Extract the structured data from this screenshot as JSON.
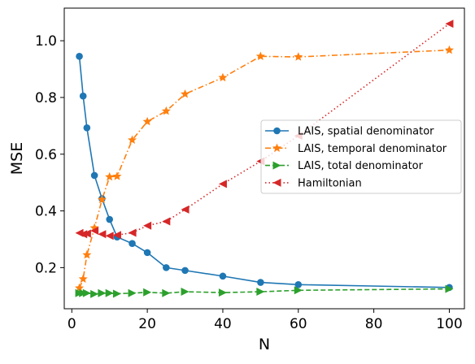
{
  "chart_data": {
    "type": "line",
    "xlabel": "N",
    "ylabel": "MSE",
    "xlim": [
      -2,
      104
    ],
    "ylim": [
      0.055,
      1.115
    ],
    "x_ticks": [
      0,
      20,
      40,
      60,
      80,
      100
    ],
    "y_ticks": [
      0.2,
      0.4,
      0.6,
      0.8,
      1.0
    ],
    "x_tick_labels": [
      "0",
      "20",
      "40",
      "60",
      "80",
      "100"
    ],
    "y_tick_labels": [
      "0.2",
      "0.4",
      "0.6",
      "0.8",
      "1.0"
    ],
    "grid": false,
    "legend_position": "center-right",
    "series": [
      {
        "name": "LAIS, spatial denominator",
        "color": "#1f77b4",
        "line_style": "solid",
        "marker": "circle",
        "x": [
          2,
          3,
          4,
          6,
          8,
          10,
          12,
          16,
          20,
          25,
          30,
          40,
          50,
          60,
          100
        ],
        "y": [
          0.945,
          0.805,
          0.693,
          0.525,
          0.443,
          0.37,
          0.308,
          0.285,
          0.253,
          0.2,
          0.19,
          0.17,
          0.148,
          0.14,
          0.13
        ]
      },
      {
        "name": "LAIS, temporal denominator",
        "color": "#ff7f0e",
        "line_style": "dashdot",
        "marker": "star",
        "x": [
          2,
          3,
          4,
          6,
          8,
          10,
          12,
          16,
          20,
          25,
          30,
          40,
          50,
          60,
          100
        ],
        "y": [
          0.128,
          0.16,
          0.245,
          0.34,
          0.44,
          0.52,
          0.522,
          0.65,
          0.715,
          0.752,
          0.812,
          0.87,
          0.945,
          0.943,
          0.967
        ]
      },
      {
        "name": "LAIS, total denominator",
        "color": "#2ca02c",
        "line_style": "dashed",
        "marker": "triangle-right",
        "x": [
          2,
          3,
          4,
          6,
          8,
          10,
          12,
          16,
          20,
          25,
          30,
          40,
          50,
          60,
          100
        ],
        "y": [
          0.11,
          0.11,
          0.11,
          0.107,
          0.11,
          0.11,
          0.108,
          0.11,
          0.113,
          0.11,
          0.115,
          0.112,
          0.115,
          0.12,
          0.125
        ]
      },
      {
        "name": "Hamiltonian",
        "color": "#d62728",
        "line_style": "dotted",
        "marker": "triangle-left",
        "x": [
          2,
          3,
          4,
          6,
          8,
          10,
          12,
          16,
          20,
          25,
          30,
          40,
          50,
          60,
          100
        ],
        "y": [
          0.322,
          0.318,
          0.32,
          0.33,
          0.318,
          0.312,
          0.315,
          0.323,
          0.348,
          0.363,
          0.405,
          0.495,
          0.575,
          0.665,
          1.06
        ]
      }
    ]
  }
}
